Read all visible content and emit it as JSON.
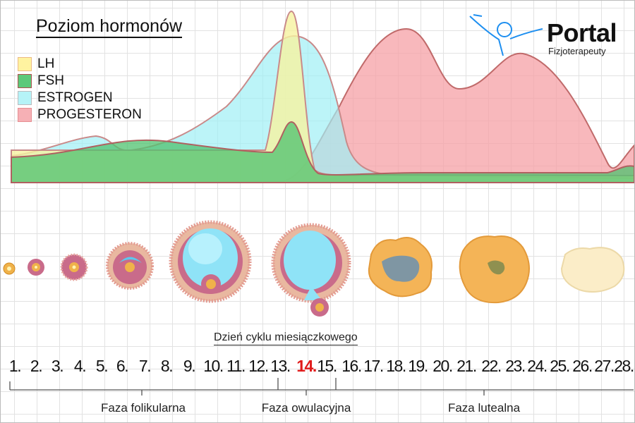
{
  "title": "Poziom hormonów",
  "legend": [
    {
      "label": "LH",
      "color": "#fff3a0"
    },
    {
      "label": "FSH",
      "color": "#5cc97a"
    },
    {
      "label": "ESTROGEN",
      "color": "#b5f3f7"
    },
    {
      "label": "PROGESTERON",
      "color": "#f6b0b5"
    }
  ],
  "logo": {
    "main": "Portal",
    "sub": "Fizjoterapeuty",
    "icon": "person-arms-raised-icon",
    "icon_color": "#1e8ff0"
  },
  "axis_title": "Dzień cyklu miesiączkowego",
  "days": [
    "1.",
    "2.",
    "3.",
    "4.",
    "5.",
    "6.",
    "7.",
    "8.",
    "9.",
    "10.",
    "11.",
    "12.",
    "13.",
    "14.",
    "15.",
    "16.",
    "17.",
    "18.",
    "19.",
    "20.",
    "21.",
    "22.",
    "23.",
    "24.",
    "25.",
    "26.",
    "27.",
    "28."
  ],
  "highlight_day": "14.",
  "highlight_color": "#e01b1b",
  "phases": [
    "Faza folikularna",
    "Faza owulacyjna",
    "Faza lutealna"
  ]
}
